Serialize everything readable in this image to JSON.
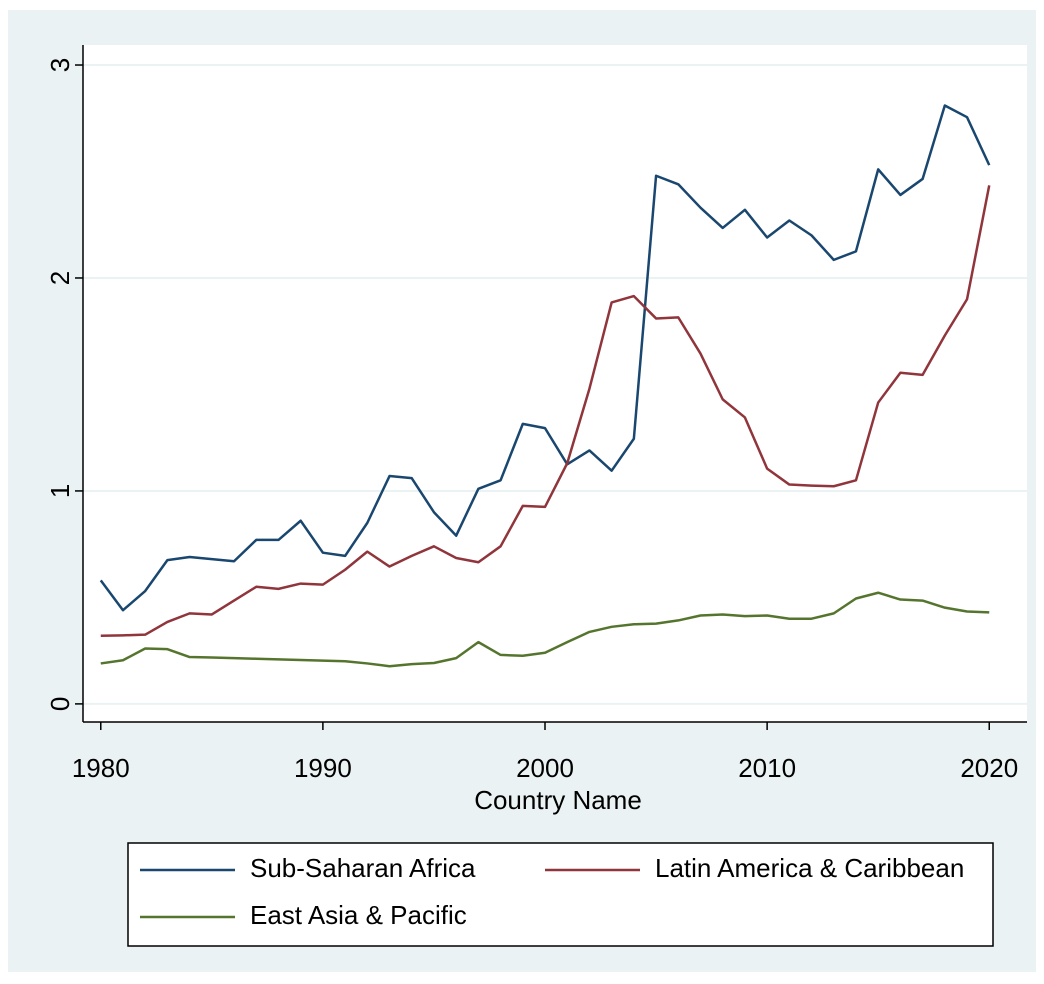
{
  "chart_data": {
    "type": "line",
    "xlabel": "Country Name",
    "x": [
      1980,
      1981,
      1982,
      1983,
      1984,
      1985,
      1986,
      1987,
      1988,
      1989,
      1990,
      1991,
      1992,
      1993,
      1994,
      1995,
      1996,
      1997,
      1998,
      1999,
      2000,
      2001,
      2002,
      2003,
      2004,
      2005,
      2006,
      2007,
      2008,
      2009,
      2010,
      2011,
      2012,
      2013,
      2014,
      2015,
      2016,
      2017,
      2018,
      2019,
      2020
    ],
    "series": [
      {
        "name": "Sub-Saharan Africa",
        "color": "#1a476f",
        "values": [
          0.58,
          0.44,
          0.53,
          0.675,
          0.69,
          0.68,
          0.67,
          0.77,
          0.77,
          0.86,
          0.71,
          0.695,
          0.85,
          1.07,
          1.06,
          0.9,
          0.79,
          1.01,
          1.05,
          1.315,
          1.295,
          1.125,
          1.19,
          1.095,
          1.245,
          2.48,
          2.44,
          2.33,
          2.235,
          2.32,
          2.19,
          2.27,
          2.2,
          2.085,
          2.125,
          2.51,
          2.39,
          2.465,
          2.81,
          2.755,
          2.53
        ]
      },
      {
        "name": "Latin America & Caribbean",
        "color": "#90353b",
        "values": [
          0.32,
          0.322,
          0.325,
          0.385,
          0.425,
          0.42,
          0.485,
          0.55,
          0.54,
          0.565,
          0.56,
          0.63,
          0.715,
          0.645,
          0.695,
          0.74,
          0.685,
          0.665,
          0.74,
          0.93,
          0.925,
          1.13,
          1.48,
          1.885,
          1.915,
          1.81,
          1.815,
          1.645,
          1.43,
          1.345,
          1.105,
          1.03,
          1.025,
          1.022,
          1.05,
          1.415,
          1.555,
          1.545,
          1.73,
          1.9,
          2.435
        ]
      },
      {
        "name": "East Asia & Pacific",
        "color": "#55752f",
        "values": [
          0.19,
          0.205,
          0.26,
          0.257,
          0.22,
          0.218,
          0.215,
          0.212,
          0.209,
          0.206,
          0.203,
          0.2,
          0.19,
          0.177,
          0.187,
          0.192,
          0.215,
          0.29,
          0.23,
          0.226,
          0.24,
          0.29,
          0.338,
          0.362,
          0.374,
          0.377,
          0.392,
          0.415,
          0.42,
          0.412,
          0.415,
          0.4,
          0.4,
          0.425,
          0.495,
          0.522,
          0.49,
          0.485,
          0.452,
          0.434,
          0.43
        ]
      }
    ],
    "xlim": [
      1979.2,
      2021.7
    ],
    "xticks": [
      1980,
      1990,
      2000,
      2010,
      2020
    ],
    "ylim": [
      -0.085,
      3.094
    ],
    "yticks": [
      0,
      1,
      2,
      3
    ],
    "grid": true,
    "legend": "bottom"
  }
}
